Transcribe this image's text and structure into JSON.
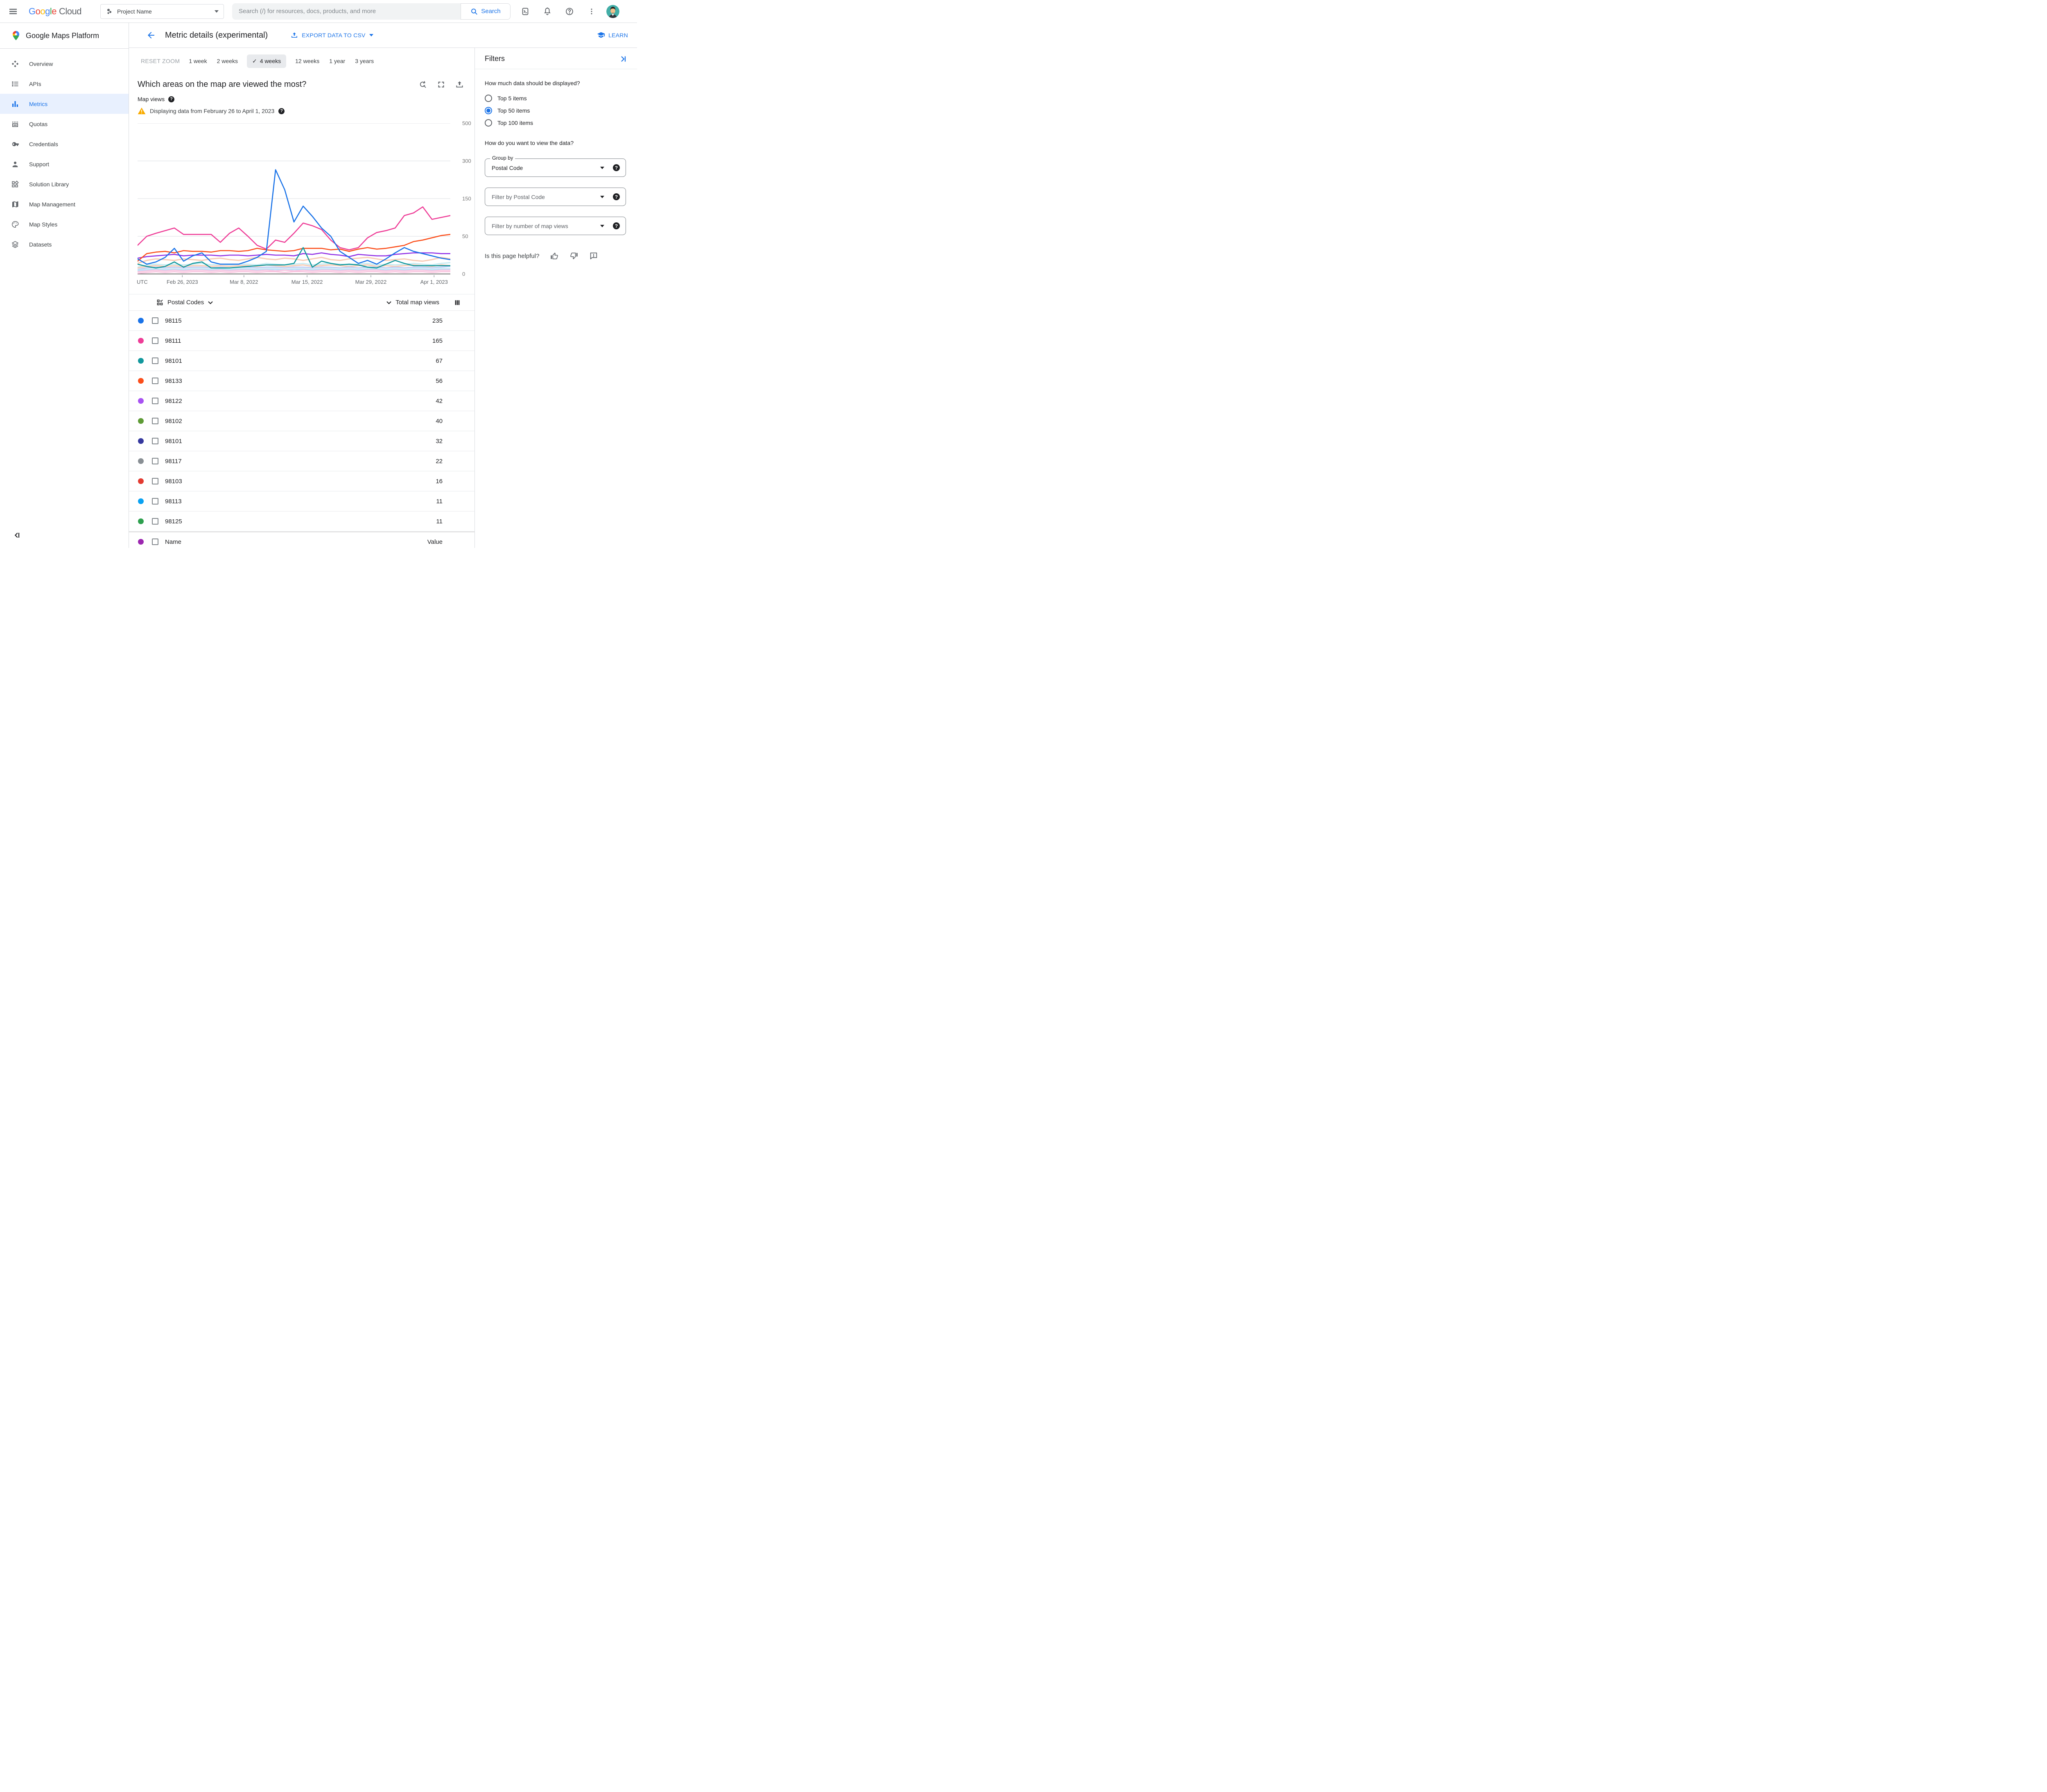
{
  "icons": {
    "check_glyph": "✓",
    "help_glyph": "?"
  },
  "topbar": {
    "google_letters": [
      [
        "G",
        "#4285F4"
      ],
      [
        "o",
        "#EA4335"
      ],
      [
        "o",
        "#FBBC04"
      ],
      [
        "g",
        "#4285F4"
      ],
      [
        "l",
        "#34A853"
      ],
      [
        "e",
        "#EA4335"
      ]
    ],
    "cloud_label": "Cloud",
    "project_label": "Project Name",
    "search_placeholder": "Search (/) for resources, docs, products, and more",
    "search_button": "Search"
  },
  "sidebar": {
    "title": "Google Maps Platform",
    "items": [
      {
        "label": "Overview",
        "icon": "overview",
        "active": false
      },
      {
        "label": "APIs",
        "icon": "apis",
        "active": false
      },
      {
        "label": "Metrics",
        "icon": "metrics",
        "active": true
      },
      {
        "label": "Quotas",
        "icon": "quotas",
        "active": false
      },
      {
        "label": "Credentials",
        "icon": "credentials",
        "active": false
      },
      {
        "label": "Support",
        "icon": "support",
        "active": false
      },
      {
        "label": "Solution Library",
        "icon": "solution",
        "active": false
      },
      {
        "label": "Map Management",
        "icon": "mapmgmt",
        "active": false
      },
      {
        "label": "Map Styles",
        "icon": "mapstyles",
        "active": false
      },
      {
        "label": "Datasets",
        "icon": "datasets",
        "active": false
      }
    ]
  },
  "header": {
    "title": "Metric details (experimental)",
    "export_label": "EXPORT DATA TO CSV",
    "learn_label": "LEARN"
  },
  "toolbar": {
    "reset_label": "RESET ZOOM",
    "ranges": [
      {
        "label": "1 week",
        "selected": false
      },
      {
        "label": "2 weeks",
        "selected": false
      },
      {
        "label": "4 weeks",
        "selected": true
      },
      {
        "label": "12 weeks",
        "selected": false
      },
      {
        "label": "1 year",
        "selected": false
      },
      {
        "label": "3 years",
        "selected": false
      }
    ]
  },
  "chart": {
    "question": "Which areas on the map are viewed the most?",
    "metric_label": "Map views",
    "warning_text": "Displaying data from February 26 to April 1, 2023",
    "utc_label": "UTC"
  },
  "chart_data": {
    "type": "line",
    "title": "Which areas on the map are viewed the most?",
    "ylabel": "Map views",
    "grid": true,
    "legend_position": "table-below",
    "ylim": [
      0,
      500
    ],
    "y_ticks": [
      0,
      50,
      150,
      300,
      500
    ],
    "y_scale": "non-linear: ticks 0,50,150,300,500 evenly spaced",
    "x_ticks": [
      {
        "label": "Feb 26, 2023",
        "f": 0.143
      },
      {
        "label": "Mar 8, 2022",
        "f": 0.34
      },
      {
        "label": "Mar 15, 2022",
        "f": 0.542
      },
      {
        "label": "Mar 29, 2022",
        "f": 0.746
      },
      {
        "label": "Apr 1, 2023",
        "f": 0.948
      }
    ],
    "series": [
      {
        "name": "98115",
        "color": "#1A73E8",
        "values": [
          20,
          13,
          16,
          22,
          34,
          17,
          24,
          28,
          16,
          13,
          13,
          13,
          17,
          22,
          30,
          265,
          185,
          88,
          130,
          103,
          72,
          50,
          30,
          22,
          14,
          18,
          13,
          20,
          28,
          35,
          30,
          27,
          24,
          21,
          19
        ]
      },
      {
        "name": "98111",
        "color": "#EE3D97",
        "values": [
          38,
          50,
          58,
          65,
          72,
          55,
          55,
          55,
          55,
          42,
          58,
          72,
          50,
          38,
          33,
          45,
          42,
          58,
          85,
          78,
          68,
          45,
          35,
          32,
          35,
          48,
          60,
          65,
          72,
          105,
          112,
          128,
          95,
          100,
          105
        ]
      },
      {
        "name": "98101",
        "color": "#12989D",
        "values": [
          13,
          10,
          8,
          10,
          16,
          9,
          14,
          16,
          8,
          8,
          8,
          9,
          10,
          11,
          12,
          12,
          12,
          14,
          35,
          9,
          17,
          14,
          12,
          13,
          12,
          9,
          8,
          13,
          18,
          14,
          11,
          11,
          11,
          11,
          11
        ]
      },
      {
        "name": "98133",
        "color": "#FB4E1B",
        "values": [
          17,
          27,
          29,
          30,
          28,
          31,
          30,
          30,
          29,
          31,
          31,
          30,
          31,
          34,
          32,
          31,
          30,
          31,
          34,
          34,
          34,
          32,
          33,
          30,
          33,
          35,
          33,
          34,
          36,
          38,
          43,
          45,
          48,
          52,
          55
        ]
      },
      {
        "name": "98122",
        "color": "#9334E6",
        "values": [
          21,
          23,
          24,
          25,
          26,
          24,
          25,
          25,
          25,
          24,
          25,
          25,
          24,
          25,
          26,
          25,
          25,
          24,
          27,
          26,
          28,
          26,
          25,
          23,
          26,
          25,
          24,
          24,
          26,
          27,
          28,
          28,
          28,
          27,
          27
        ]
      }
    ],
    "other_series": [
      {
        "color": "#F8CBB5",
        "values": [
          14,
          18,
          20,
          19,
          18,
          20,
          19,
          18,
          20,
          21,
          19,
          18,
          20,
          22,
          20,
          19,
          21,
          20,
          18,
          20,
          22,
          19,
          18,
          20,
          21,
          22,
          20,
          18,
          19,
          20,
          18,
          17,
          19,
          22,
          20
        ]
      },
      {
        "color": "#C8ECF2",
        "values": [
          9,
          12,
          13,
          12,
          13,
          12,
          13,
          14,
          12,
          13,
          12,
          13,
          13,
          12,
          14,
          13,
          12,
          13,
          14,
          12,
          13,
          14,
          13,
          12,
          13,
          14,
          12,
          13,
          12,
          13,
          14,
          13,
          12,
          14,
          15
        ]
      },
      {
        "color": "#F8CBB5",
        "values": [
          8,
          10,
          11,
          10,
          11,
          10,
          11,
          11,
          10,
          11,
          10,
          11,
          11,
          10,
          12,
          11,
          10,
          11,
          12,
          10,
          11,
          12,
          11,
          10,
          11,
          12,
          10,
          11,
          10,
          11,
          12,
          11,
          10,
          12,
          11
        ]
      },
      {
        "color": "#BFCDF5",
        "values": [
          6,
          8,
          9,
          8,
          9,
          8,
          9,
          9,
          8,
          9,
          8,
          9,
          9,
          8,
          9,
          9,
          8,
          9,
          9,
          8,
          9,
          9,
          8,
          9,
          8,
          9,
          9,
          8,
          9,
          8,
          9,
          9,
          8,
          9,
          10
        ]
      },
      {
        "color": "#C8ECF2",
        "values": [
          5,
          6,
          7,
          6,
          7,
          6,
          7,
          7,
          6,
          7,
          6,
          7,
          7,
          6,
          7,
          7,
          6,
          7,
          7,
          6,
          7,
          7,
          6,
          7,
          6,
          7,
          7,
          6,
          7,
          6,
          7,
          7,
          6,
          7,
          7
        ]
      },
      {
        "color": "#BBDEFB",
        "values": [
          4,
          5,
          6,
          5,
          6,
          5,
          6,
          6,
          5,
          6,
          5,
          6,
          6,
          5,
          6,
          6,
          5,
          6,
          6,
          5,
          6,
          6,
          5,
          6,
          5,
          6,
          6,
          5,
          6,
          5,
          6,
          6,
          5,
          6,
          6
        ]
      },
      {
        "color": "#F9C6E0",
        "values": [
          3,
          4,
          5,
          4,
          5,
          4,
          5,
          5,
          4,
          5,
          4,
          5,
          5,
          4,
          5,
          4,
          5,
          4,
          5,
          4,
          5,
          5,
          4,
          5,
          4,
          5,
          5,
          4,
          5,
          4,
          5,
          5,
          4,
          5,
          5
        ]
      },
      {
        "color": "#F9C6E0",
        "values": [
          1,
          2,
          3,
          2,
          3,
          2,
          3,
          3,
          2,
          3,
          2,
          3,
          3,
          2,
          3,
          3,
          2,
          3,
          3,
          2,
          3,
          3,
          2,
          3,
          2,
          3,
          3,
          2,
          3,
          2,
          3,
          3,
          2,
          3,
          3
        ]
      }
    ]
  },
  "table": {
    "group_header": "Postal Codes",
    "value_header": "Total map views",
    "rows": [
      {
        "code": "98115",
        "value": "235",
        "color": "#1A73E8"
      },
      {
        "code": "98111",
        "value": "165",
        "color": "#EE3D97"
      },
      {
        "code": "98101",
        "value": "67",
        "color": "#12989D"
      },
      {
        "code": "98133",
        "value": "56",
        "color": "#FB4E1B"
      },
      {
        "code": "98122",
        "value": "42",
        "color": "#A852F2"
      },
      {
        "code": "98102",
        "value": "40",
        "color": "#5E9B35"
      },
      {
        "code": "98101",
        "value": "32",
        "color": "#35389E"
      },
      {
        "code": "98117",
        "value": "22",
        "color": "#898F94"
      },
      {
        "code": "98103",
        "value": "16",
        "color": "#E33B31"
      },
      {
        "code": "98113",
        "value": "11",
        "color": "#0AA2F2"
      },
      {
        "code": "98125",
        "value": "11",
        "color": "#2EA04E"
      }
    ],
    "footer_row": {
      "code": "Name",
      "value": "Value",
      "color": "#9C27B0"
    }
  },
  "filters": {
    "title": "Filters",
    "q1": "How much data should be displayed?",
    "options": [
      {
        "label": "Top 5 items",
        "selected": false
      },
      {
        "label": "Top 50 items",
        "selected": true
      },
      {
        "label": "Top 100 items",
        "selected": false
      }
    ],
    "q2": "How do you want to view the data?",
    "group_by_label": "Group by",
    "group_by_value": "Postal Code",
    "filter1_placeholder": "Filter by Postal Code",
    "filter2_placeholder": "Filter by number of map views",
    "helpful_text": "Is this page helpful?"
  }
}
